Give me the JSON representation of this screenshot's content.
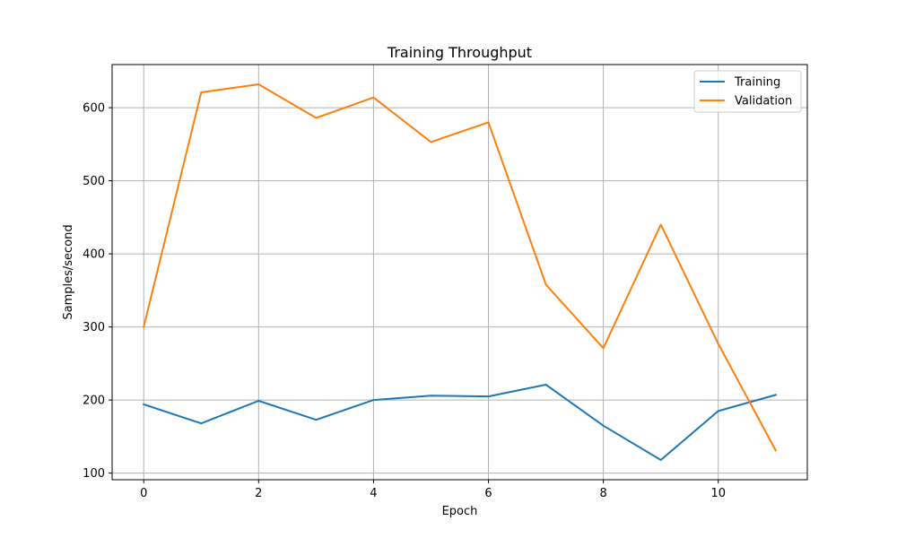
{
  "chart_data": {
    "type": "line",
    "title": "Training Throughput",
    "xlabel": "Epoch",
    "ylabel": "Samples/second",
    "xlim": [
      -0.55,
      11.55
    ],
    "ylim": [
      91,
      659
    ],
    "xticks": [
      0,
      2,
      4,
      6,
      8,
      10
    ],
    "yticks": [
      100,
      200,
      300,
      400,
      500,
      600
    ],
    "grid": true,
    "legend_position": "top-right",
    "x": [
      0,
      1,
      2,
      3,
      4,
      5,
      6,
      7,
      8,
      9,
      10,
      11
    ],
    "series": [
      {
        "name": "Training",
        "color": "#1f77b4",
        "values": [
          194,
          168,
          199,
          173,
          200,
          206,
          205,
          221,
          165,
          118,
          185,
          207
        ]
      },
      {
        "name": "Validation",
        "color": "#ff7f0e",
        "values": [
          300,
          621,
          632,
          586,
          614,
          553,
          580,
          358,
          271,
          440,
          277,
          131
        ]
      }
    ]
  }
}
